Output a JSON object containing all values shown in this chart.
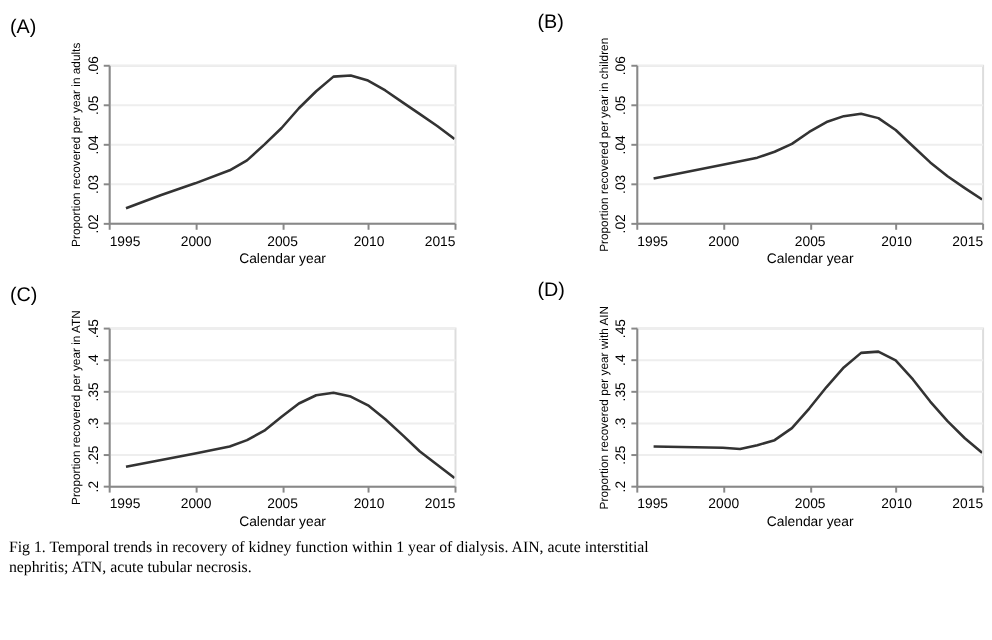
{
  "chart_data": [
    {
      "type": "line",
      "title": "(A)",
      "xlabel": "Calendar year",
      "ylabel": "Proportion recovered per year in adults",
      "grid": "y",
      "line_style": "solid",
      "marker": "none",
      "x": [
        1996,
        1998,
        2000,
        2002,
        2003,
        2004,
        2005,
        2006,
        2007,
        2008,
        2009,
        2010,
        2011,
        2012,
        2013,
        2014,
        2015
      ],
      "series": [
        {
          "color": "#333333",
          "values": [
            0.0237,
            0.027,
            0.03,
            0.0333,
            0.0358,
            0.0398,
            0.044,
            0.049,
            0.0533,
            0.057,
            0.0573,
            0.056,
            0.0535,
            0.0505,
            0.0475,
            0.0445,
            0.0412
          ]
        }
      ],
      "xlim": [
        1995,
        2015
      ],
      "xticks": [
        1995,
        2000,
        2005,
        2010,
        2015
      ],
      "ylim": [
        0.02,
        0.06
      ],
      "yticks": [
        {
          "value": 0.02,
          "label": ".02"
        },
        {
          "value": 0.03,
          "label": ".03"
        },
        {
          "value": 0.04,
          "label": ".04"
        },
        {
          "value": 0.05,
          "label": ".05"
        },
        {
          "value": 0.06,
          "label": ".06"
        }
      ]
    },
    {
      "type": "line",
      "title": "(B)",
      "xlabel": "Calendar year",
      "ylabel": "Proportion recovered per year in children",
      "grid": "y",
      "line_style": "solid",
      "marker": "none",
      "x": [
        1996,
        2000,
        2002,
        2003,
        2004,
        2005,
        2006,
        2007,
        2008,
        2009,
        2010,
        2011,
        2012,
        2013,
        2014,
        2015
      ],
      "series": [
        {
          "color": "#333333",
          "values": [
            0.0312,
            0.0347,
            0.0365,
            0.038,
            0.04,
            0.043,
            0.0455,
            0.047,
            0.0476,
            0.0465,
            0.0435,
            0.0394,
            0.0353,
            0.0318,
            0.0288,
            0.0259
          ]
        }
      ],
      "xlim": [
        1995,
        2015
      ],
      "xticks": [
        1995,
        2000,
        2005,
        2010,
        2015
      ],
      "ylim": [
        0.02,
        0.06
      ],
      "yticks": [
        {
          "value": 0.02,
          "label": ".02"
        },
        {
          "value": 0.03,
          "label": ".03"
        },
        {
          "value": 0.04,
          "label": ".04"
        },
        {
          "value": 0.05,
          "label": ".05"
        },
        {
          "value": 0.06,
          "label": ".06"
        }
      ]
    },
    {
      "type": "line",
      "title": "(C)",
      "xlabel": "Calendar year",
      "ylabel": "Proportion recovered per year in ATN",
      "grid": "y",
      "line_style": "solid",
      "marker": "none",
      "x": [
        1996,
        2000,
        2002,
        2003,
        2004,
        2005,
        2006,
        2007,
        2008,
        2009,
        2010,
        2011,
        2012,
        2013,
        2014,
        2015
      ],
      "series": [
        {
          "color": "#333333",
          "values": [
            0.23,
            0.251,
            0.262,
            0.272,
            0.287,
            0.309,
            0.33,
            0.343,
            0.347,
            0.341,
            0.327,
            0.305,
            0.28,
            0.254,
            0.233,
            0.212
          ]
        }
      ],
      "xlim": [
        1995,
        2015
      ],
      "xticks": [
        1995,
        2000,
        2005,
        2010,
        2015
      ],
      "ylim": [
        0.2,
        0.45
      ],
      "yticks": [
        {
          "value": 0.2,
          "label": ".2"
        },
        {
          "value": 0.25,
          "label": ".25"
        },
        {
          "value": 0.3,
          "label": ".3"
        },
        {
          "value": 0.35,
          "label": ".35"
        },
        {
          "value": 0.4,
          "label": ".4"
        },
        {
          "value": 0.45,
          "label": ".45"
        }
      ]
    },
    {
      "type": "line",
      "title": "(D)",
      "xlabel": "Calendar year",
      "ylabel": "Proportion recovered per year with AIN",
      "grid": "y",
      "line_style": "solid",
      "marker": "none",
      "x": [
        1996,
        2000,
        2001,
        2002,
        2003,
        2004,
        2005,
        2006,
        2007,
        2008,
        2009,
        2010,
        2011,
        2012,
        2013,
        2014,
        2015
      ],
      "series": [
        {
          "color": "#333333",
          "values": [
            0.262,
            0.26,
            0.258,
            0.264,
            0.272,
            0.291,
            0.322,
            0.356,
            0.387,
            0.41,
            0.412,
            0.398,
            0.368,
            0.333,
            0.302,
            0.275,
            0.252
          ]
        }
      ],
      "xlim": [
        1995,
        2015
      ],
      "xticks": [
        1995,
        2000,
        2005,
        2010,
        2015
      ],
      "ylim": [
        0.2,
        0.45
      ],
      "yticks": [
        {
          "value": 0.2,
          "label": ".2"
        },
        {
          "value": 0.25,
          "label": ".25"
        },
        {
          "value": 0.3,
          "label": ".3"
        },
        {
          "value": 0.35,
          "label": ".35"
        },
        {
          "value": 0.4,
          "label": ".4"
        },
        {
          "value": 0.45,
          "label": ".45"
        }
      ],
      "annotations": [
        "Fig 1. Temporal trends in recovery of kidney function within 1 year of dialysis. AIN, acute interstitial nephritis; ATN, acute tubular necrosis."
      ]
    }
  ]
}
